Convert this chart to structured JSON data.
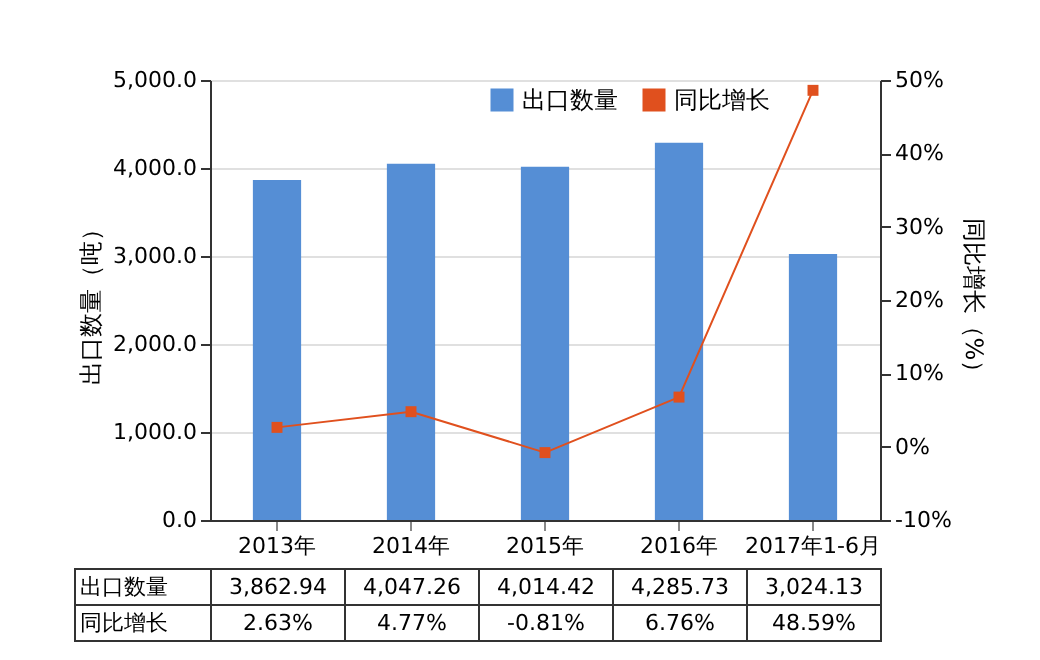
{
  "chart_data": {
    "type": "bar",
    "categories": [
      "2013年",
      "2014年",
      "2015年",
      "2016年",
      "2017年1-6月"
    ],
    "ylabel": "出口数量（吨）",
    "y2label": "同比增长（%）",
    "series": [
      {
        "name": "出口数量",
        "color": "#558ed5",
        "values": [
          3862.94,
          4047.26,
          4014.42,
          4285.73,
          3024.13
        ],
        "value_labels": [
          "3,862.94",
          "4,047.26",
          "4,014.42",
          "4,285.73",
          "3,024.13"
        ]
      },
      {
        "name": "同比增长",
        "type": "line",
        "axis": "y2",
        "marker": "square",
        "color": "#e0501e",
        "values": [
          2.63,
          4.77,
          -0.81,
          6.76,
          48.59
        ],
        "value_labels": [
          "2.63%",
          "4.77%",
          "-0.81%",
          "6.76%",
          "48.59%"
        ]
      }
    ],
    "ylim": [
      0,
      5000
    ],
    "yticks": [
      {
        "value": 0,
        "label": "0.0"
      },
      {
        "value": 1000,
        "label": "1,000.0"
      },
      {
        "value": 2000,
        "label": "2,000.0"
      },
      {
        "value": 3000,
        "label": "3,000.0"
      },
      {
        "value": 4000,
        "label": "4,000.0"
      },
      {
        "value": 5000,
        "label": "5,000.0"
      }
    ],
    "y2lim": [
      -10,
      50
    ],
    "y2ticks": [
      {
        "value": -10,
        "label": "-10%"
      },
      {
        "value": 0,
        "label": "0%"
      },
      {
        "value": 10,
        "label": "10%"
      },
      {
        "value": 20,
        "label": "20%"
      },
      {
        "value": 30,
        "label": "30%"
      },
      {
        "value": 40,
        "label": "40%"
      },
      {
        "value": 50,
        "label": "50%"
      }
    ],
    "grid": "y",
    "legend": "top right"
  }
}
